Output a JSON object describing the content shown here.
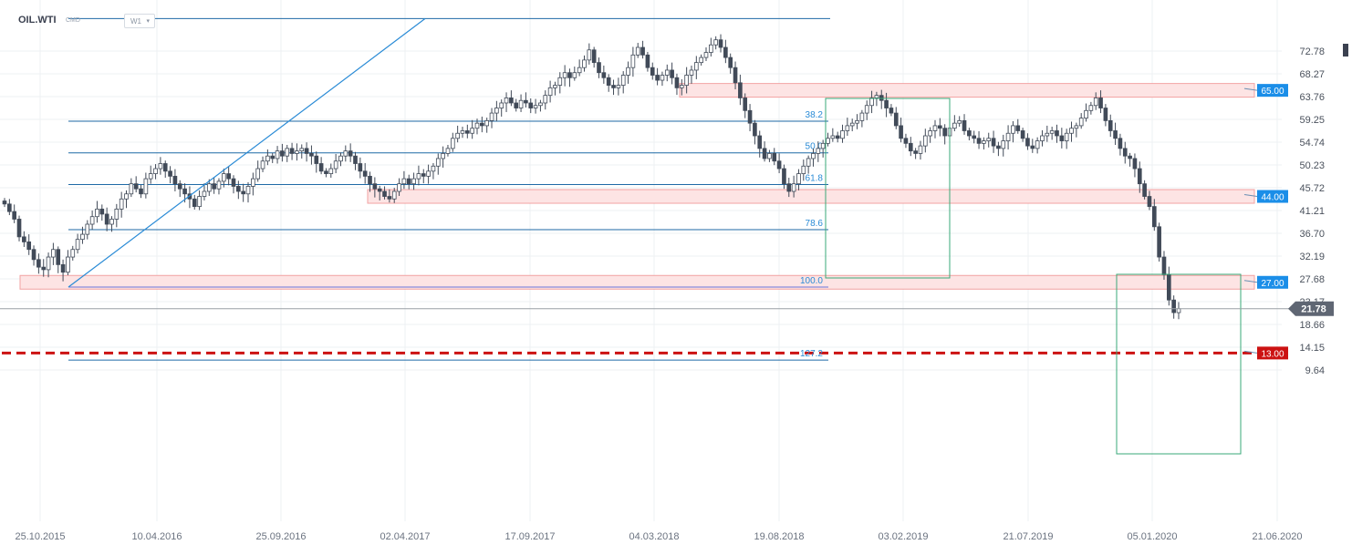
{
  "header": {
    "symbol": "OIL.WTI",
    "instrument_type": "CMD",
    "interval": "W1",
    "interval_icon": "chevron-down-icon"
  },
  "colors": {
    "bull_candle": "#ffffff",
    "bear_candle": "#414a58",
    "candle_outline": "#414a58",
    "fib_line": "#1f6aa6",
    "fib_label": "#2a8bd6",
    "trend_line": "#2a8bd6",
    "zone_fill": "#fde4e4",
    "zone_border": "#f2a2a2",
    "box_border": "#3aa878",
    "price_line": "#9aa0a6",
    "price_badge": "#5f6673",
    "level_badge": "#1b8ee8",
    "dashed_level": "#cc1212"
  },
  "chart_data": {
    "type": "candlestick",
    "symbol": "OIL.WTI",
    "interval": "W1",
    "x_tick_labels": [
      "25.10.2015",
      "10.04.2016",
      "25.09.2016",
      "02.04.2017",
      "17.09.2017",
      "04.03.2018",
      "19.08.2018",
      "03.02.2019",
      "21.07.2019",
      "05.01.2020",
      "21.06.2020"
    ],
    "y_tick_labels": [
      "72.78",
      "68.27",
      "63.76",
      "59.25",
      "54.74",
      "50.23",
      "45.72",
      "41.21",
      "36.70",
      "32.19",
      "27.68",
      "23.17",
      "18.66",
      "14.15",
      "9.64"
    ],
    "y_range": [
      9.64,
      72.78
    ],
    "last_price": "21.78",
    "price_levels": [
      {
        "value": "65.00",
        "style": "zone"
      },
      {
        "value": "44.00",
        "style": "zone"
      },
      {
        "value": "27.00",
        "style": "zone"
      },
      {
        "value": "13.00",
        "style": "dashed"
      }
    ],
    "fibonacci_labels": [
      "38.2",
      "50.0",
      "61.8",
      "78.6",
      "100.0",
      "127.2"
    ],
    "closes": [
      42.5,
      41.0,
      39.5,
      36.0,
      35.0,
      33.5,
      31.5,
      30.0,
      29.5,
      32.0,
      33.5,
      30.5,
      29.0,
      32.0,
      33.5,
      35.5,
      36.5,
      38.5,
      40.0,
      41.5,
      40.5,
      38.5,
      39.5,
      41.5,
      43.5,
      44.5,
      46.5,
      45.5,
      44.5,
      47.5,
      48.5,
      49.5,
      50.5,
      49.0,
      48.0,
      46.5,
      45.5,
      44.5,
      43.5,
      42.0,
      44.0,
      45.0,
      46.5,
      45.5,
      47.0,
      48.5,
      47.5,
      46.0,
      45.0,
      44.5,
      46.0,
      47.5,
      49.5,
      51.0,
      52.0,
      51.5,
      53.0,
      52.0,
      53.5,
      52.5,
      53.0,
      53.5,
      52.5,
      52.0,
      50.5,
      49.0,
      48.5,
      49.5,
      51.0,
      52.0,
      53.0,
      52.0,
      50.5,
      49.0,
      48.0,
      46.5,
      45.5,
      45.0,
      44.0,
      43.5,
      45.0,
      46.5,
      47.5,
      46.5,
      47.5,
      48.5,
      48.0,
      49.0,
      50.0,
      51.5,
      52.5,
      53.5,
      55.5,
      56.5,
      57.0,
      56.5,
      57.5,
      58.5,
      58.0,
      59.0,
      60.5,
      61.5,
      62.5,
      63.5,
      62.5,
      61.5,
      63.0,
      62.5,
      61.5,
      62.0,
      62.5,
      64.0,
      65.5,
      66.0,
      67.5,
      68.5,
      67.5,
      68.5,
      69.5,
      71.0,
      73.0,
      70.5,
      68.5,
      67.5,
      66.0,
      65.5,
      66.0,
      68.0,
      69.5,
      72.0,
      73.5,
      72.0,
      69.5,
      68.0,
      67.0,
      68.0,
      69.0,
      67.5,
      65.5,
      66.0,
      68.0,
      69.0,
      70.5,
      71.5,
      72.5,
      74.0,
      75.0,
      73.5,
      71.5,
      69.5,
      66.5,
      63.5,
      61.0,
      58.5,
      56.0,
      53.5,
      51.5,
      52.5,
      51.0,
      49.5,
      46.5,
      45.0,
      46.5,
      48.5,
      50.0,
      51.5,
      52.5,
      53.5,
      54.5,
      55.5,
      56.0,
      55.5,
      57.0,
      58.0,
      58.5,
      59.0,
      60.5,
      62.0,
      63.5,
      64.0,
      63.0,
      61.5,
      60.5,
      58.0,
      55.5,
      54.5,
      53.0,
      52.5,
      54.0,
      56.0,
      57.0,
      58.0,
      57.5,
      56.0,
      57.5,
      58.5,
      59.0,
      57.0,
      56.0,
      55.5,
      54.5,
      55.0,
      55.5,
      54.0,
      53.5,
      55.0,
      56.5,
      58.0,
      57.0,
      55.5,
      54.0,
      53.5,
      55.0,
      56.0,
      56.5,
      57.0,
      56.0,
      55.0,
      56.5,
      57.5,
      58.0,
      59.5,
      61.0,
      62.0,
      63.5,
      61.5,
      59.0,
      57.0,
      55.5,
      53.5,
      52.0,
      51.5,
      49.5,
      46.5,
      44.0,
      42.0,
      38.0,
      32.0,
      28.5,
      23.5,
      21.0,
      21.78
    ],
    "price_scale_icon": "price-scale-marker"
  }
}
